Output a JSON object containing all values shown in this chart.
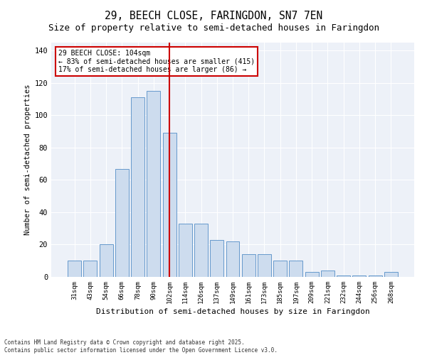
{
  "title": "29, BEECH CLOSE, FARINGDON, SN7 7EN",
  "subtitle": "Size of property relative to semi-detached houses in Faringdon",
  "xlabel": "Distribution of semi-detached houses by size in Faringdon",
  "ylabel": "Number of semi-detached properties",
  "categories": [
    "31sqm",
    "43sqm",
    "54sqm",
    "66sqm",
    "78sqm",
    "90sqm",
    "102sqm",
    "114sqm",
    "126sqm",
    "137sqm",
    "149sqm",
    "161sqm",
    "173sqm",
    "185sqm",
    "197sqm",
    "209sqm",
    "221sqm",
    "232sqm",
    "244sqm",
    "256sqm",
    "268sqm"
  ],
  "values": [
    10,
    10,
    20,
    67,
    111,
    115,
    89,
    33,
    33,
    23,
    22,
    14,
    14,
    10,
    10,
    3,
    4,
    1,
    1,
    1,
    3
  ],
  "bar_color": "#cddcee",
  "bar_edge_color": "#6699cc",
  "vline_x": 6,
  "vline_color": "#cc0000",
  "annotation_title": "29 BEECH CLOSE: 104sqm",
  "annotation_line1": "← 83% of semi-detached houses are smaller (415)",
  "annotation_line2": "17% of semi-detached houses are larger (86) →",
  "annotation_box_color": "#cc0000",
  "ylim": [
    0,
    145
  ],
  "yticks": [
    0,
    20,
    40,
    60,
    80,
    100,
    120,
    140
  ],
  "footer1": "Contains HM Land Registry data © Crown copyright and database right 2025.",
  "footer2": "Contains public sector information licensed under the Open Government Licence v3.0.",
  "bg_color": "#edf1f8",
  "title_fontsize": 10.5,
  "subtitle_fontsize": 9
}
